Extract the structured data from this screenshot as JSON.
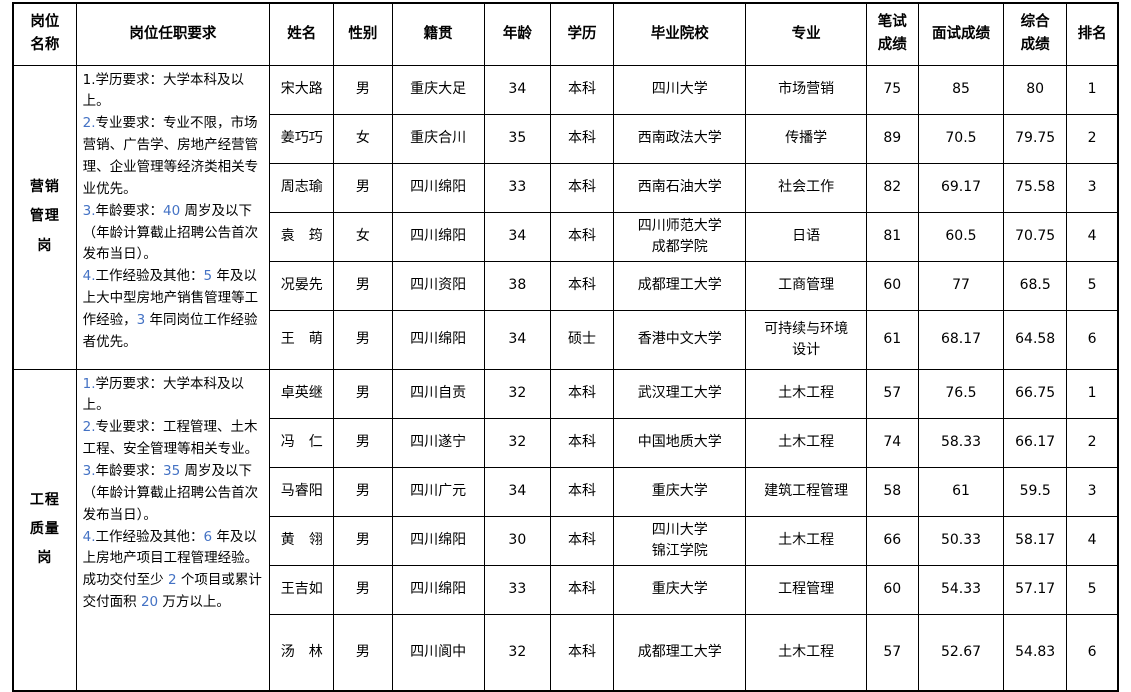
{
  "colors": {
    "accent_blue": "#4472c4",
    "border": "#000000",
    "text": "#000000",
    "background": "#ffffff"
  },
  "table": {
    "headers": {
      "position": "岗位\n名称",
      "requirements": "岗位任职要求",
      "name": "姓名",
      "gender": "性别",
      "origin": "籍贯",
      "age": "年龄",
      "degree": "学历",
      "school": "毕业院校",
      "major": "专业",
      "written": "笔试\n成绩",
      "interview": "面试成绩",
      "overall": "综合\n成绩",
      "rank": "排名"
    }
  },
  "positions": [
    {
      "name": "营销\n管理\n岗",
      "requirements": [
        [
          {
            "t": "1.学历要求：大学本科及以上。"
          }
        ],
        [
          {
            "t": "2.",
            "blue": true
          },
          {
            "t": "专业要求：专业不限，市场营销、广告学、房地产经营管理、企业管理等经济类相关专业优先。"
          }
        ],
        [
          {
            "t": "3.",
            "blue": true
          },
          {
            "t": "年龄要求："
          },
          {
            "t": "40",
            "blue": true
          },
          {
            "t": " 周岁及以下（年龄计算截止招聘公告首次发布当日）。"
          }
        ],
        [
          {
            "t": "4.",
            "blue": true
          },
          {
            "t": "工作经验及其他："
          },
          {
            "t": "5",
            "blue": true
          },
          {
            "t": " 年及以上大中型房地产销售管理等工作经验，"
          },
          {
            "t": "3",
            "blue": true
          },
          {
            "t": " 年同岗位工作经验者优先。"
          }
        ]
      ],
      "rows": [
        {
          "name": "宋大路",
          "gender": "男",
          "origin": "重庆大足",
          "age": "34",
          "degree": "本科",
          "school": "四川大学",
          "major": "市场营销",
          "written": "75",
          "interview": "85",
          "overall": "80",
          "rank": "1"
        },
        {
          "name": "姜巧巧",
          "gender": "女",
          "origin": "重庆合川",
          "age": "35",
          "degree": "本科",
          "school": "西南政法大学",
          "major": "传播学",
          "written": "89",
          "interview": "70.5",
          "overall": "79.75",
          "rank": "2"
        },
        {
          "name": "周志瑜",
          "gender": "男",
          "origin": "四川绵阳",
          "age": "33",
          "degree": "本科",
          "school": "西南石油大学",
          "major": "社会工作",
          "written": "82",
          "interview": "69.17",
          "overall": "75.58",
          "rank": "3"
        },
        {
          "name": "袁　筠",
          "gender": "女",
          "origin": "四川绵阳",
          "age": "34",
          "degree": "本科",
          "school": "四川师范大学\n成都学院",
          "major": "日语",
          "written": "81",
          "interview": "60.5",
          "overall": "70.75",
          "rank": "4"
        },
        {
          "name": "况晏先",
          "gender": "男",
          "origin": "四川资阳",
          "age": "38",
          "degree": "本科",
          "school": "成都理工大学",
          "major": "工商管理",
          "written": "60",
          "interview": "77",
          "overall": "68.5",
          "rank": "5"
        },
        {
          "name": "王　萌",
          "gender": "男",
          "origin": "四川绵阳",
          "age": "34",
          "degree": "硕士",
          "school": "香港中文大学",
          "major": "可持续与环境\n设计",
          "written": "61",
          "interview": "68.17",
          "overall": "64.58",
          "rank": "6"
        }
      ]
    },
    {
      "name": "工程\n质量\n岗",
      "requirements": [
        [
          {
            "t": "1.",
            "blue": true
          },
          {
            "t": "学历要求：大学本科及以上。"
          }
        ],
        [
          {
            "t": "2.",
            "blue": true
          },
          {
            "t": "专业要求：工程管理、土木工程、安全管理等相关专业。"
          }
        ],
        [
          {
            "t": "3.",
            "blue": true
          },
          {
            "t": "年龄要求："
          },
          {
            "t": "35",
            "blue": true
          },
          {
            "t": " 周岁及以下（年龄计算截止招聘公告首次发布当日）。"
          }
        ],
        [
          {
            "t": "4.",
            "blue": true
          },
          {
            "t": "工作经验及其他："
          },
          {
            "t": "6",
            "blue": true
          },
          {
            "t": " 年及以上房地产项目工程管理经验。成功交付至少 "
          },
          {
            "t": "2",
            "blue": true
          },
          {
            "t": " 个项目或累计交付面积 "
          },
          {
            "t": "20",
            "blue": true
          },
          {
            "t": " 万方以上。"
          }
        ]
      ],
      "rows": [
        {
          "name": "卓英继",
          "gender": "男",
          "origin": "四川自贡",
          "age": "32",
          "degree": "本科",
          "school": "武汉理工大学",
          "major": "土木工程",
          "written": "57",
          "interview": "76.5",
          "overall": "66.75",
          "rank": "1"
        },
        {
          "name": "冯　仁",
          "gender": "男",
          "origin": "四川遂宁",
          "age": "32",
          "degree": "本科",
          "school": "中国地质大学",
          "major": "土木工程",
          "written": "74",
          "interview": "58.33",
          "overall": "66.17",
          "rank": "2"
        },
        {
          "name": "马睿阳",
          "gender": "男",
          "origin": "四川广元",
          "age": "34",
          "degree": "本科",
          "school": "重庆大学",
          "major": "建筑工程管理",
          "written": "58",
          "interview": "61",
          "overall": "59.5",
          "rank": "3"
        },
        {
          "name": "黄　翎",
          "gender": "男",
          "origin": "四川绵阳",
          "age": "30",
          "degree": "本科",
          "school": "四川大学\n锦江学院",
          "major": "土木工程",
          "written": "66",
          "interview": "50.33",
          "overall": "58.17",
          "rank": "4"
        },
        {
          "name": "王吉如",
          "gender": "男",
          "origin": "四川绵阳",
          "age": "33",
          "degree": "本科",
          "school": "重庆大学",
          "major": "工程管理",
          "written": "60",
          "interview": "54.33",
          "overall": "57.17",
          "rank": "5"
        },
        {
          "name": "汤　林",
          "gender": "男",
          "origin": "四川阆中",
          "age": "32",
          "degree": "本科",
          "school": "成都理工大学",
          "major": "土木工程",
          "written": "57",
          "interview": "52.67",
          "overall": "54.83",
          "rank": "6"
        }
      ]
    }
  ]
}
